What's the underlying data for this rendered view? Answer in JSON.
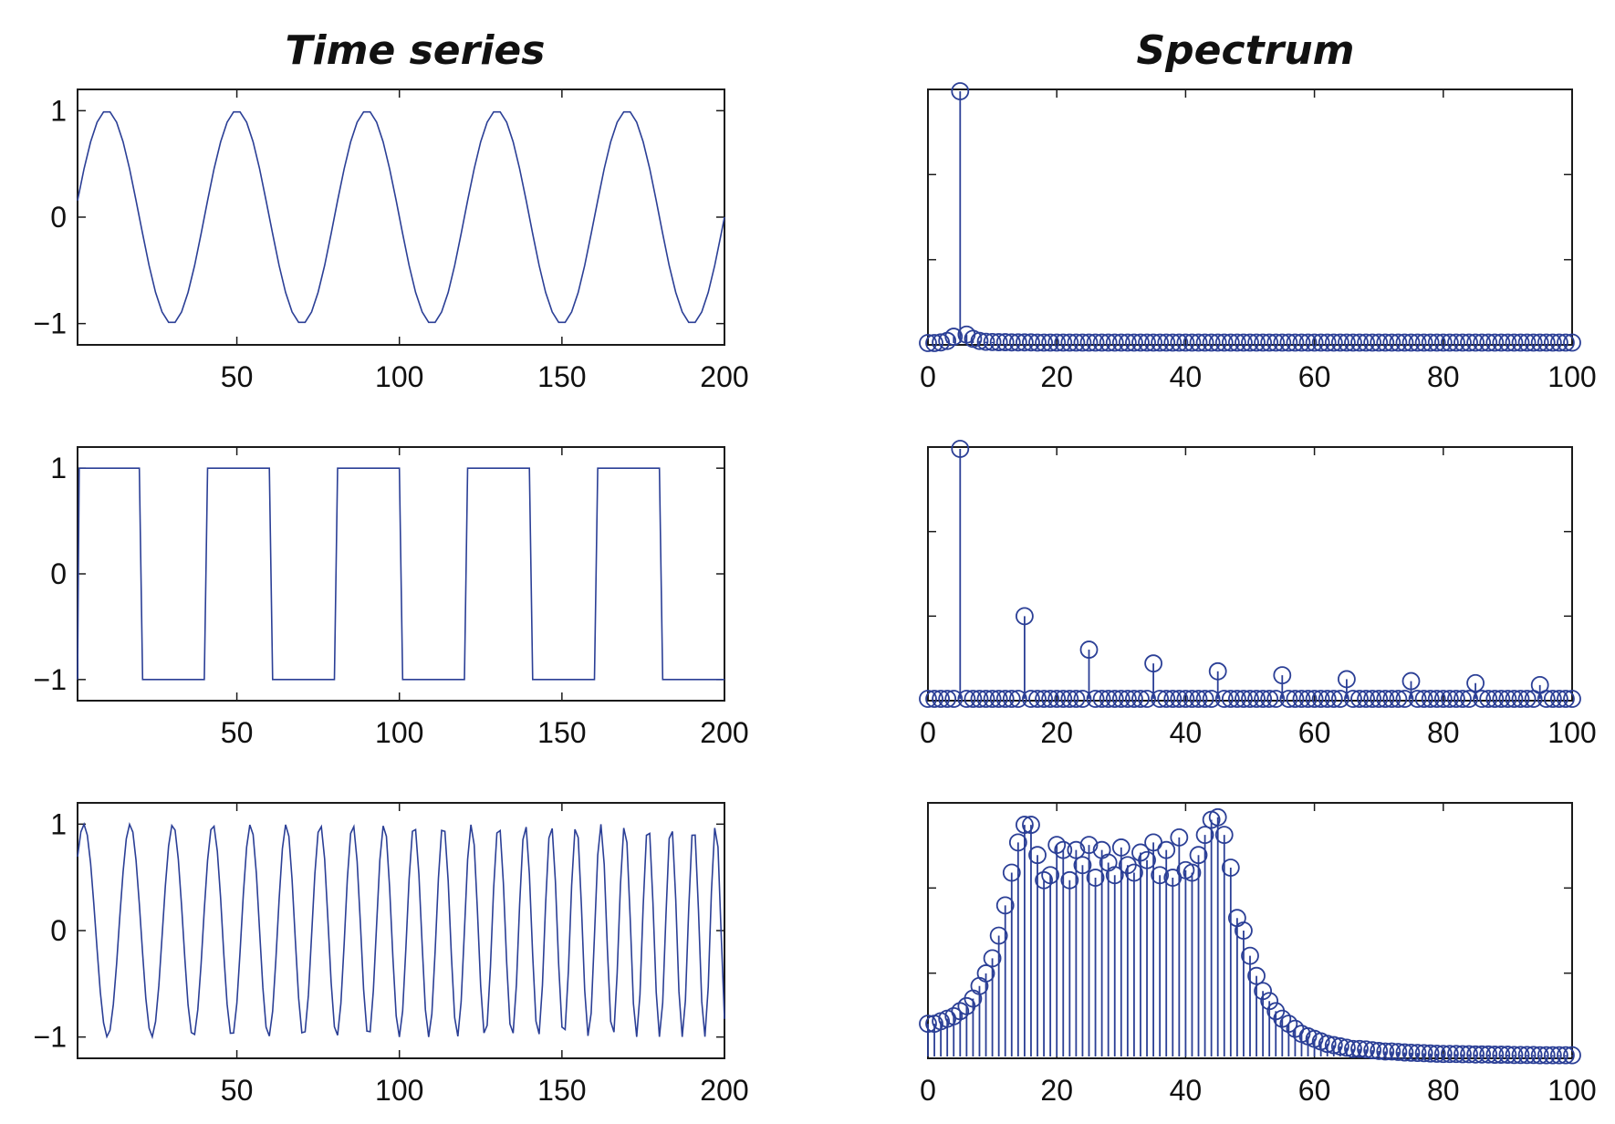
{
  "figure": {
    "left_title": "Time series",
    "right_title": "Spectrum",
    "line_color": "#2b3f96"
  },
  "chart_data": [
    {
      "id": "sine-time",
      "type": "line",
      "title": "Time series",
      "xlabel": "",
      "ylabel": "",
      "xlim": [
        1,
        200
      ],
      "ylim": [
        -1.2,
        1.2
      ],
      "xticks": [
        50,
        100,
        150,
        200
      ],
      "yticks": [
        -1,
        0,
        1
      ],
      "grid": false,
      "x": [
        1,
        3,
        5,
        7,
        9,
        11,
        13,
        15,
        17,
        19,
        21,
        23,
        25,
        27,
        29,
        31,
        33,
        35,
        37,
        39,
        41,
        43,
        45,
        47,
        49,
        51,
        53,
        55,
        57,
        59,
        61,
        63,
        65,
        67,
        69,
        71,
        73,
        75,
        77,
        79,
        81,
        83,
        85,
        87,
        89,
        91,
        93,
        95,
        97,
        99,
        101,
        103,
        105,
        107,
        109,
        111,
        113,
        115,
        117,
        119,
        121,
        123,
        125,
        127,
        129,
        131,
        133,
        135,
        137,
        139,
        141,
        143,
        145,
        147,
        149,
        151,
        153,
        155,
        157,
        159,
        161,
        163,
        165,
        167,
        169,
        171,
        173,
        175,
        177,
        179,
        181,
        183,
        185,
        187,
        189,
        191,
        193,
        195,
        197,
        199,
        200
      ],
      "y": [
        0.156,
        0.454,
        0.707,
        0.891,
        0.988,
        0.988,
        0.891,
        0.707,
        0.454,
        0.156,
        -0.156,
        -0.454,
        -0.707,
        -0.891,
        -0.988,
        -0.988,
        -0.891,
        -0.707,
        -0.454,
        -0.156,
        0.156,
        0.454,
        0.707,
        0.891,
        0.988,
        0.988,
        0.891,
        0.707,
        0.454,
        0.156,
        -0.156,
        -0.454,
        -0.707,
        -0.891,
        -0.988,
        -0.988,
        -0.891,
        -0.707,
        -0.454,
        -0.156,
        0.156,
        0.454,
        0.707,
        0.891,
        0.988,
        0.988,
        0.891,
        0.707,
        0.454,
        0.156,
        -0.156,
        -0.454,
        -0.707,
        -0.891,
        -0.988,
        -0.988,
        -0.891,
        -0.707,
        -0.454,
        -0.156,
        0.156,
        0.454,
        0.707,
        0.891,
        0.988,
        0.988,
        0.891,
        0.707,
        0.454,
        0.156,
        -0.156,
        -0.454,
        -0.707,
        -0.891,
        -0.988,
        -0.988,
        -0.891,
        -0.707,
        -0.454,
        -0.156,
        0.156,
        0.454,
        0.707,
        0.891,
        0.988,
        0.988,
        0.891,
        0.707,
        0.454,
        0.156,
        -0.156,
        -0.454,
        -0.707,
        -0.891,
        -0.988,
        -0.988,
        -0.891,
        -0.707,
        -0.454,
        -0.156,
        0.0
      ]
    },
    {
      "id": "sine-spectrum",
      "type": "stem",
      "title": "Spectrum",
      "xlabel": "",
      "ylabel": "",
      "xlim": [
        0,
        100
      ],
      "ylim": [
        0,
        1.19
      ],
      "xticks": [
        0,
        20,
        40,
        60,
        80,
        100
      ],
      "yticks": [],
      "grid": false,
      "x": [
        0,
        1,
        2,
        3,
        4,
        5,
        6,
        7,
        8,
        9,
        10,
        11,
        12,
        13,
        14,
        15,
        16,
        17,
        18,
        19,
        20,
        21,
        22,
        23,
        24,
        25,
        26,
        27,
        28,
        29,
        30,
        31,
        32,
        33,
        34,
        35,
        36,
        37,
        38,
        39,
        40,
        41,
        42,
        43,
        44,
        45,
        46,
        47,
        48,
        49,
        50,
        51,
        52,
        53,
        54,
        55,
        56,
        57,
        58,
        59,
        60,
        61,
        62,
        63,
        64,
        65,
        66,
        67,
        68,
        69,
        70,
        71,
        72,
        73,
        74,
        75,
        76,
        77,
        78,
        79,
        80,
        81,
        82,
        83,
        84,
        85,
        86,
        87,
        88,
        89,
        90,
        91,
        92,
        93,
        94,
        95,
        96,
        97,
        98,
        99,
        100
      ],
      "y": [
        0.0,
        0.0,
        0.003,
        0.01,
        0.03,
        1.19,
        0.04,
        0.02,
        0.01,
        0.006,
        0.005,
        0.004,
        0.004,
        0.003,
        0.003,
        0.003,
        0.003,
        0.002,
        0.002,
        0.002,
        0.002,
        0.002,
        0.002,
        0.002,
        0.002,
        0.002,
        0.002,
        0.002,
        0.002,
        0.002,
        0.002,
        0.002,
        0.002,
        0.002,
        0.002,
        0.002,
        0.002,
        0.002,
        0.002,
        0.002,
        0.002,
        0.002,
        0.002,
        0.002,
        0.002,
        0.002,
        0.002,
        0.002,
        0.002,
        0.002,
        0.002,
        0.002,
        0.002,
        0.002,
        0.002,
        0.002,
        0.002,
        0.002,
        0.002,
        0.002,
        0.002,
        0.002,
        0.002,
        0.002,
        0.002,
        0.002,
        0.002,
        0.002,
        0.002,
        0.002,
        0.002,
        0.002,
        0.002,
        0.002,
        0.002,
        0.002,
        0.002,
        0.002,
        0.002,
        0.002,
        0.002,
        0.002,
        0.002,
        0.002,
        0.002,
        0.002,
        0.002,
        0.002,
        0.002,
        0.002,
        0.002,
        0.002,
        0.002,
        0.002,
        0.002,
        0.002,
        0.002,
        0.002,
        0.002,
        0.002,
        0.002
      ]
    },
    {
      "id": "square-time",
      "type": "line",
      "title": "Time series",
      "xlabel": "",
      "ylabel": "",
      "xlim": [
        1,
        200
      ],
      "ylim": [
        -1.2,
        1.2
      ],
      "xticks": [
        50,
        100,
        150,
        200
      ],
      "yticks": [
        -1,
        0,
        1
      ],
      "grid": false,
      "x": [
        1,
        1.5,
        20,
        21,
        40,
        41,
        60,
        61,
        80,
        81,
        100,
        101,
        120,
        121,
        140,
        141,
        160,
        161,
        180,
        181,
        200
      ],
      "y": [
        -1,
        1,
        1,
        -1,
        -1,
        1,
        1,
        -1,
        -1,
        1,
        1,
        -1,
        -1,
        1,
        1,
        -1,
        -1,
        1,
        1,
        -1,
        -1
      ]
    },
    {
      "id": "square-spectrum",
      "type": "stem",
      "title": "Spectrum",
      "xlabel": "",
      "ylabel": "",
      "xlim": [
        0,
        100
      ],
      "ylim": [
        0,
        1.27
      ],
      "xticks": [
        0,
        20,
        40,
        60,
        80,
        100
      ],
      "yticks": [],
      "grid": false,
      "x": [
        0,
        1,
        2,
        3,
        4,
        5,
        6,
        7,
        8,
        9,
        10,
        11,
        12,
        13,
        14,
        15,
        16,
        17,
        18,
        19,
        20,
        21,
        22,
        23,
        24,
        25,
        26,
        27,
        28,
        29,
        30,
        31,
        32,
        33,
        34,
        35,
        36,
        37,
        38,
        39,
        40,
        41,
        42,
        43,
        44,
        45,
        46,
        47,
        48,
        49,
        50,
        51,
        52,
        53,
        54,
        55,
        56,
        57,
        58,
        59,
        60,
        61,
        62,
        63,
        64,
        65,
        66,
        67,
        68,
        69,
        70,
        71,
        72,
        73,
        74,
        75,
        76,
        77,
        78,
        79,
        80,
        81,
        82,
        83,
        84,
        85,
        86,
        87,
        88,
        89,
        90,
        91,
        92,
        93,
        94,
        95,
        96,
        97,
        98,
        99,
        100
      ],
      "y": [
        0,
        0,
        0,
        0,
        0,
        1.27,
        0,
        0,
        0,
        0,
        0,
        0,
        0,
        0,
        0,
        0.42,
        0,
        0,
        0,
        0,
        0,
        0,
        0,
        0,
        0,
        0.25,
        0,
        0,
        0,
        0,
        0,
        0,
        0,
        0,
        0,
        0.18,
        0,
        0,
        0,
        0,
        0,
        0,
        0,
        0,
        0,
        0.14,
        0,
        0,
        0,
        0,
        0,
        0,
        0,
        0,
        0,
        0.12,
        0,
        0,
        0,
        0,
        0,
        0,
        0,
        0,
        0,
        0.1,
        0,
        0,
        0,
        0,
        0,
        0,
        0,
        0,
        0,
        0.09,
        0,
        0,
        0,
        0,
        0,
        0,
        0,
        0,
        0,
        0.08,
        0,
        0,
        0,
        0,
        0,
        0,
        0,
        0,
        0,
        0.07,
        0,
        0,
        0,
        0,
        0
      ]
    },
    {
      "id": "chirp-time",
      "type": "line",
      "title": "Time series",
      "xlabel": "",
      "ylabel": "",
      "xlim": [
        1,
        200
      ],
      "ylim": [
        -1.2,
        1.2
      ],
      "xticks": [
        50,
        100,
        150,
        200
      ],
      "yticks": [
        -1,
        0,
        1
      ],
      "grid": false,
      "chirp": {
        "f0": 0.066,
        "f1": 0.15,
        "phase": 0.35
      }
    },
    {
      "id": "chirp-spectrum",
      "type": "stem",
      "title": "Spectrum",
      "xlabel": "",
      "ylabel": "",
      "xlim": [
        0,
        100
      ],
      "ylim": [
        0,
        1.0
      ],
      "xticks": [
        0,
        20,
        40,
        60,
        80,
        100
      ],
      "yticks": [],
      "grid": false,
      "x": [
        0,
        1,
        2,
        3,
        4,
        5,
        6,
        7,
        8,
        9,
        10,
        11,
        12,
        13,
        14,
        15,
        16,
        17,
        18,
        19,
        20,
        21,
        22,
        23,
        24,
        25,
        26,
        27,
        28,
        29,
        30,
        31,
        32,
        33,
        34,
        35,
        36,
        37,
        38,
        39,
        40,
        41,
        42,
        43,
        44,
        45,
        46,
        47,
        48,
        49,
        50,
        51,
        52,
        53,
        54,
        55,
        56,
        57,
        58,
        59,
        60,
        61,
        62,
        63,
        64,
        65,
        66,
        67,
        68,
        69,
        70,
        71,
        72,
        73,
        74,
        75,
        76,
        77,
        78,
        79,
        80,
        81,
        82,
        83,
        84,
        85,
        86,
        87,
        88,
        89,
        90,
        91,
        92,
        93,
        94,
        95,
        96,
        97,
        98,
        99,
        100
      ],
      "y": [
        0.13,
        0.13,
        0.14,
        0.15,
        0.16,
        0.18,
        0.2,
        0.23,
        0.28,
        0.33,
        0.39,
        0.48,
        0.6,
        0.73,
        0.85,
        0.92,
        0.92,
        0.8,
        0.7,
        0.72,
        0.84,
        0.82,
        0.7,
        0.82,
        0.76,
        0.84,
        0.71,
        0.82,
        0.77,
        0.72,
        0.83,
        0.76,
        0.73,
        0.81,
        0.78,
        0.85,
        0.72,
        0.82,
        0.71,
        0.87,
        0.74,
        0.73,
        0.8,
        0.88,
        0.94,
        0.95,
        0.88,
        0.75,
        0.55,
        0.5,
        0.4,
        0.32,
        0.26,
        0.22,
        0.18,
        0.15,
        0.13,
        0.11,
        0.09,
        0.08,
        0.07,
        0.06,
        0.05,
        0.045,
        0.04,
        0.035,
        0.03,
        0.03,
        0.028,
        0.025,
        0.022,
        0.02,
        0.02,
        0.018,
        0.016,
        0.015,
        0.014,
        0.013,
        0.012,
        0.011,
        0.01,
        0.01,
        0.01,
        0.009,
        0.009,
        0.008,
        0.008,
        0.008,
        0.007,
        0.007,
        0.007,
        0.006,
        0.006,
        0.006,
        0.006,
        0.005,
        0.005,
        0.005,
        0.005,
        0.005,
        0.005
      ]
    }
  ]
}
